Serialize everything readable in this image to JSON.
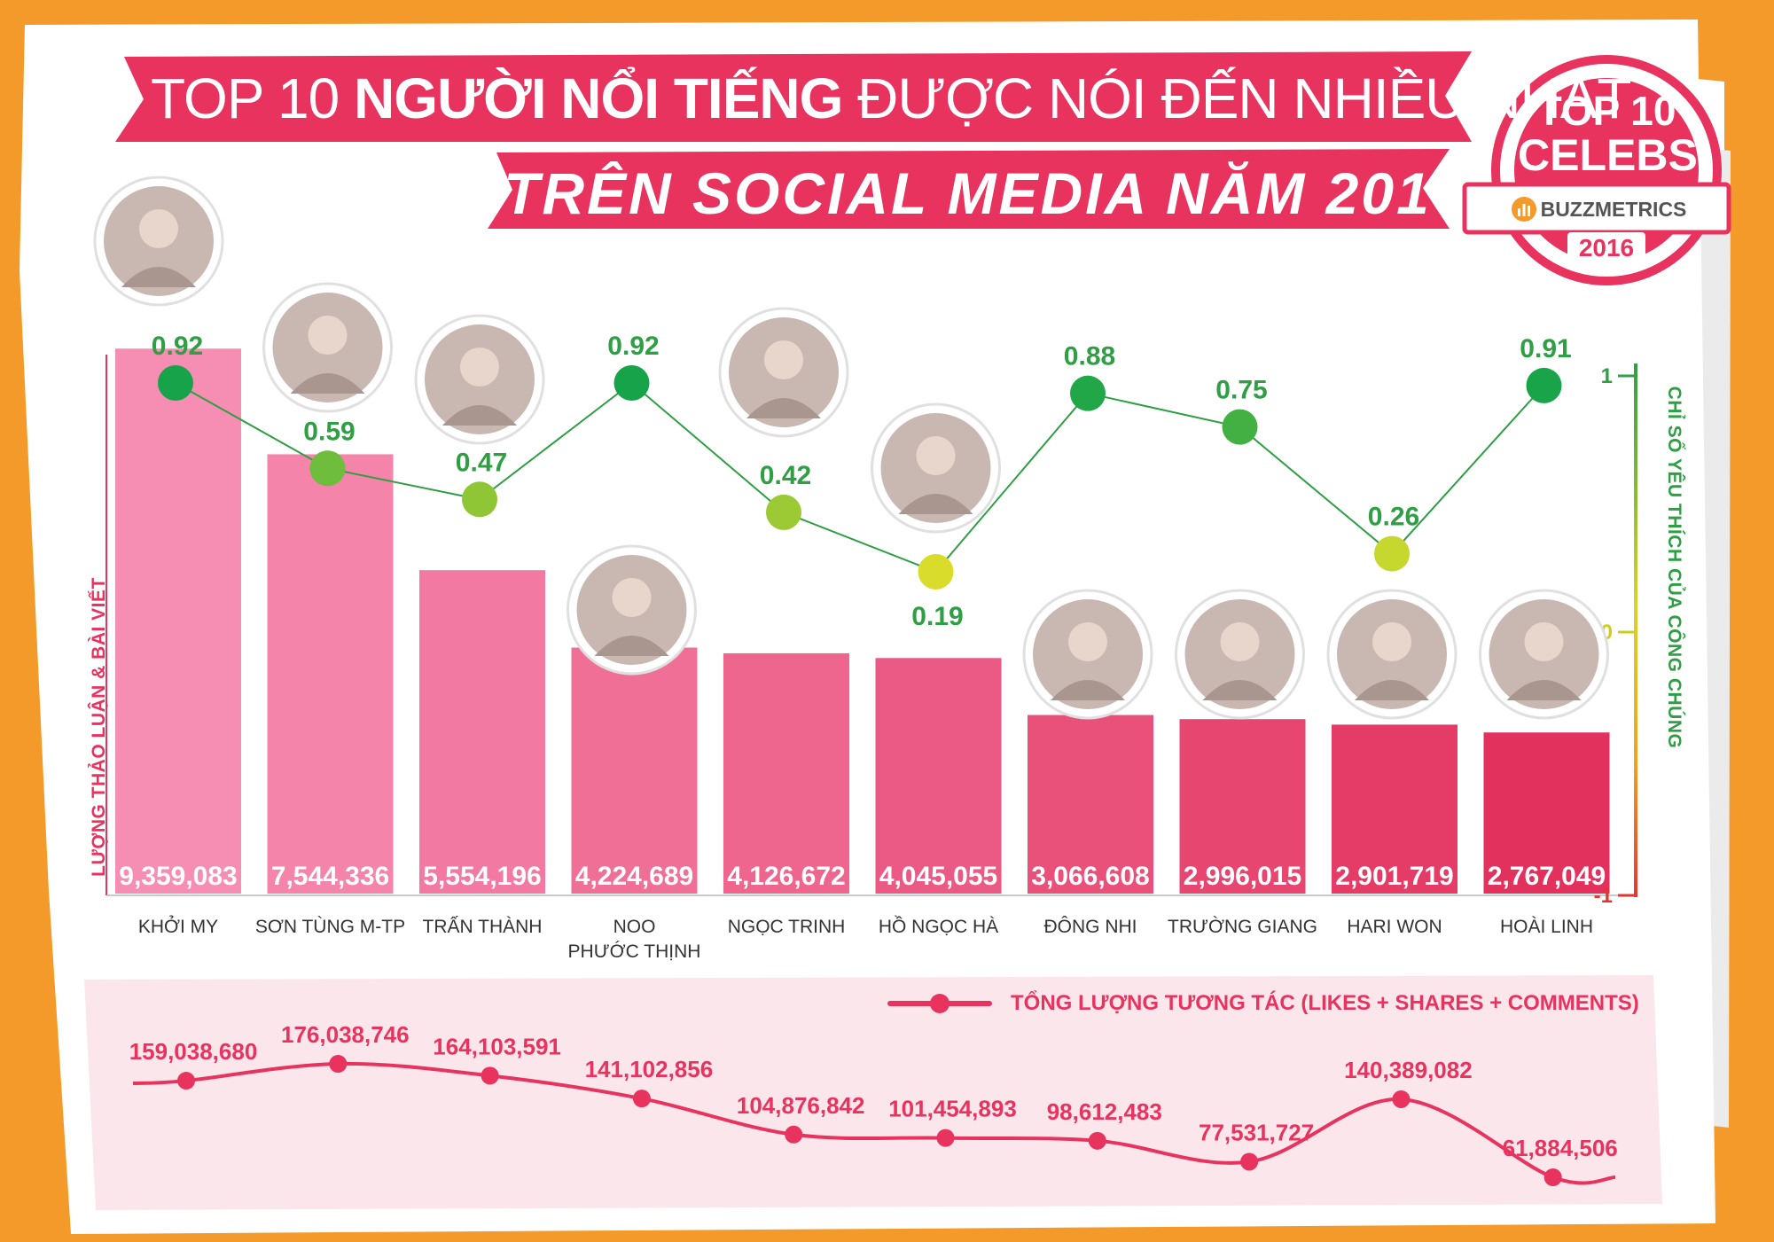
{
  "title": {
    "line1_a": "TOP 10 ",
    "line1_b": "NGƯỜI NỔI TIẾNG",
    "line1_c": " ĐƯỢC NÓI ĐẾN NHIỀU NHẤT",
    "line2": "TRÊN SOCIAL MEDIA NĂM 2016"
  },
  "badge": {
    "line1": "TOP 10",
    "line2": "CELEBS",
    "brand": "BUZZMETRICS",
    "year": "2016",
    "icon": "bar-chart-icon"
  },
  "colors": {
    "background": "#f39a2a",
    "banner": "#e8335f",
    "bar_light": "#f68eb4",
    "bar_dark": "#e3315d",
    "line_green": "#2f9e44",
    "dot_green": "#16a34a",
    "dot_yellow": "#d9dc2a",
    "engagement": "#e8335f"
  },
  "chart_data": [
    {
      "type": "bar",
      "categories": [
        "KHỞI MY",
        "SƠN TÙNG M-TP",
        "TRẤN THÀNH",
        "NOO PHƯỚC THỊNH",
        "NGỌC TRINH",
        "HỒ NGỌC HÀ",
        "ĐÔNG NHI",
        "TRƯỜNG GIANG",
        "HARI WON",
        "HOÀI LINH"
      ],
      "category_lines": [
        [
          "KHỞI MY"
        ],
        [
          "SƠN TÙNG M-TP"
        ],
        [
          "TRẤN THÀNH"
        ],
        [
          "NOO",
          "PHƯỚC THỊNH"
        ],
        [
          "NGỌC TRINH"
        ],
        [
          "HỒ NGỌC HÀ"
        ],
        [
          "ĐÔNG NHI"
        ],
        [
          "TRƯỜNG GIANG"
        ],
        [
          "HARI WON"
        ],
        [
          "HOÀI LINH"
        ]
      ],
      "values": [
        9359083,
        7544336,
        5554196,
        4224689,
        4126672,
        4045055,
        3066608,
        2996015,
        2901719,
        2767049
      ],
      "value_labels": [
        "9,359,083",
        "7,544,336",
        "5,554,196",
        "4,224,689",
        "4,126,672",
        "4,045,055",
        "3,066,608",
        "2,996,015",
        "2,901,719",
        "2,767,049"
      ],
      "ylabel": "LƯỢNG THẢO LUẬN & BÀI VIẾT",
      "ylim": [
        0,
        10200000
      ],
      "grid": false
    },
    {
      "type": "line",
      "categories": [
        "KHỞI MY",
        "SƠN TÙNG M-TP",
        "TRẤN THÀNH",
        "NOO PHƯỚC THỊNH",
        "NGỌC TRINH",
        "HỒ NGỌC HÀ",
        "ĐÔNG NHI",
        "TRƯỜNG GIANG",
        "HARI WON",
        "HOÀI LINH"
      ],
      "values": [
        0.92,
        0.59,
        0.47,
        0.92,
        0.42,
        0.19,
        0.88,
        0.75,
        0.26,
        0.91
      ],
      "value_labels": [
        "0.92",
        "0.59",
        "0.47",
        "0.92",
        "0.42",
        "0.19",
        "0.88",
        "0.75",
        "0.26",
        "0.91"
      ],
      "ylabel": "CHỈ SỐ YÊU THÍCH CỦA CÔNG CHÚNG",
      "y_ticks": [
        "1",
        "0",
        "-1"
      ],
      "ylim": [
        -1,
        1
      ],
      "axis_side": "right"
    },
    {
      "type": "line",
      "categories": [
        "KHỞI MY",
        "SƠN TÙNG M-TP",
        "TRẤN THÀNH",
        "NOO PHƯỚC THỊNH",
        "NGỌC TRINH",
        "HỒ NGỌC HÀ",
        "ĐÔNG NHI",
        "TRƯỜNG GIANG",
        "HARI WON",
        "HOÀI LINH"
      ],
      "values": [
        159038680,
        176038746,
        164103591,
        141102856,
        104876842,
        101454893,
        98612483,
        77531727,
        140389082,
        61884506
      ],
      "value_labels": [
        "159,038,680",
        "176,038,746",
        "164,103,591",
        "141,102,856",
        "104,876,842",
        "101,454,893",
        "98,612,483",
        "77,531,727",
        "140,389,082",
        "61,884,506"
      ],
      "series_name": "TỔNG LƯỢNG TƯƠNG TÁC (LIKES + SHARES + COMMENTS)",
      "legend": "top-right"
    }
  ]
}
